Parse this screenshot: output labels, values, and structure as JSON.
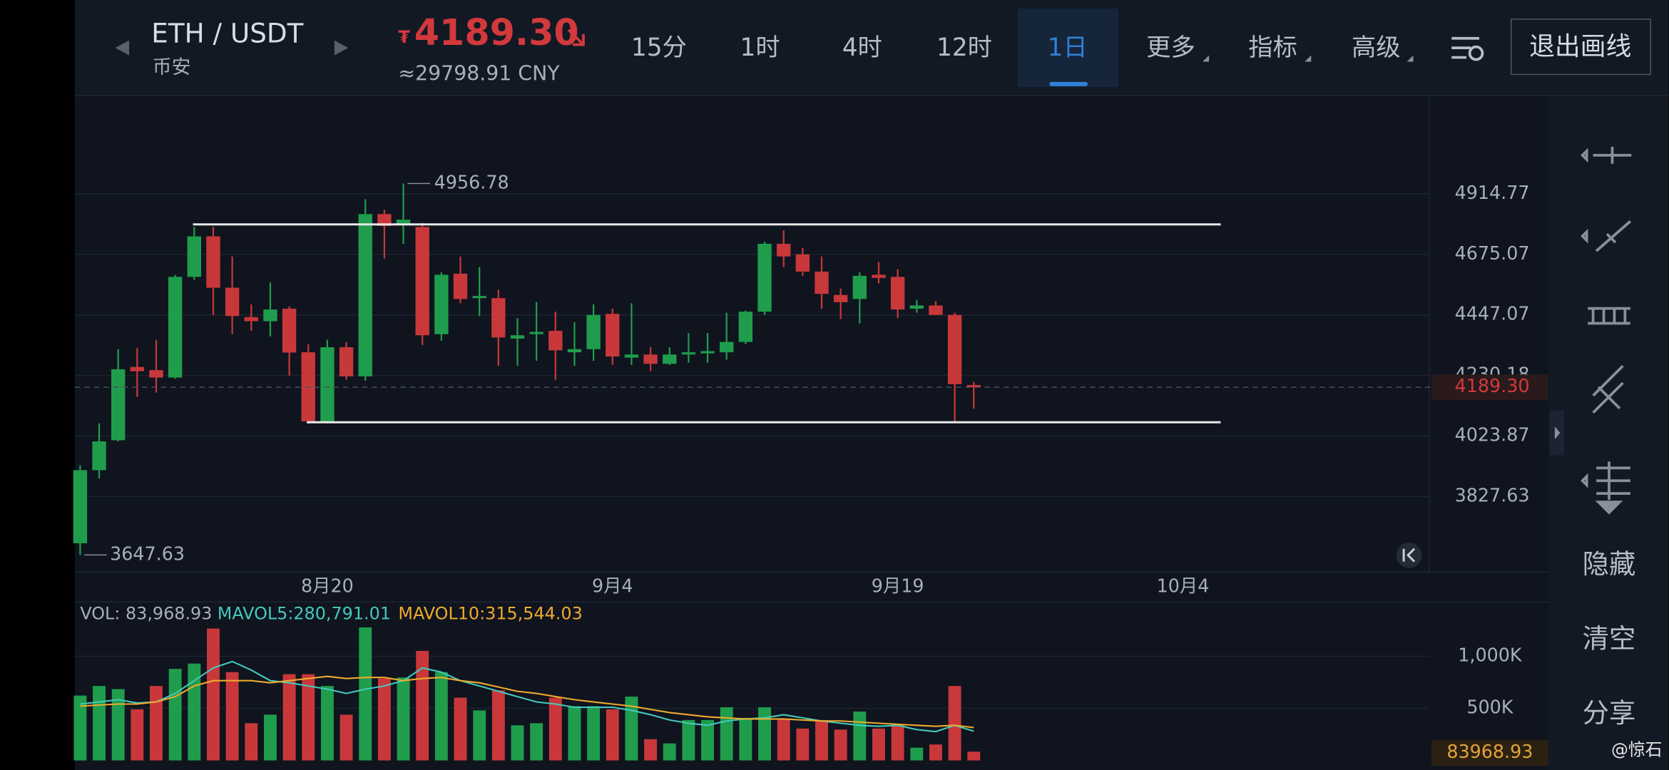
{
  "header": {
    "pair": "ETH / USDT",
    "exchange": "币安",
    "currency_symbol": "₮",
    "price": "4189.30",
    "price_cny": "≈29798.91 CNY",
    "tabs": [
      "15分",
      "1时",
      "4时",
      "12时",
      "1日",
      "更多",
      "指标",
      "高级"
    ],
    "exit_button": "退出画线"
  },
  "sidebar": {
    "buttons": [
      "隐藏",
      "清空",
      "分享"
    ]
  },
  "watermark": "@惊石",
  "chart_data": [
    {
      "type": "candlestick",
      "log": true,
      "grid": true,
      "up_color": "#1f9d4c",
      "down_color": "#c8383a",
      "categories": [
        null,
        null,
        null,
        null,
        null,
        null,
        null,
        null,
        null,
        null,
        null,
        null,
        null,
        "8月20",
        null,
        null,
        null,
        null,
        null,
        null,
        null,
        null,
        null,
        null,
        null,
        null,
        null,
        null,
        "9月4",
        null,
        null,
        null,
        null,
        null,
        null,
        null,
        null,
        null,
        null,
        null,
        null,
        null,
        null,
        "9月19",
        null,
        null,
        null,
        null,
        null,
        null,
        null,
        null,
        null,
        null,
        null,
        null,
        null,
        null,
        "10月4"
      ],
      "open": [
        3683,
        3912,
        4010,
        4260,
        4249,
        4223,
        4589,
        4745,
        4548,
        4439,
        4424,
        4470,
        4312,
        4073,
        4330,
        4227,
        4833,
        4790,
        4782,
        4377,
        4601,
        4509,
        4509,
        4361,
        4377,
        4389,
        4312,
        4323,
        4451,
        4293,
        4304,
        4271,
        4304,
        4308,
        4312,
        4349,
        4459,
        4716,
        4675,
        4609,
        4521,
        4506,
        4597,
        4589,
        4470,
        4482,
        4447,
        4197,
        null,
        null,
        null,
        null,
        null,
        null,
        null,
        null,
        null,
        null,
        null
      ],
      "high": [
        3928,
        4066,
        4323,
        4327,
        4356,
        4597,
        4782,
        4782,
        4667,
        4486,
        4568,
        4478,
        4341,
        4357,
        4349,
        4893,
        4850,
        4956.78,
        4798,
        4606,
        4667,
        4626,
        4541,
        4435,
        4494,
        4459,
        4420,
        4486,
        4470,
        4490,
        4330,
        4330,
        4381,
        4381,
        4455,
        4463,
        4724,
        4769,
        4700,
        4667,
        4545,
        4606,
        4646,
        4618,
        4502,
        4498,
        4455,
        4208,
        null,
        null,
        null,
        null,
        null,
        null,
        null,
        null,
        null,
        null,
        null
      ],
      "low": [
        3647.63,
        3885,
        4006,
        4156,
        4171,
        4219,
        4577,
        4447,
        4377,
        4389,
        4369,
        4230,
        4066,
        4066,
        4215,
        4212,
        4659,
        4716,
        4338,
        4353,
        4490,
        4443,
        4264,
        4264,
        4282,
        4215,
        4264,
        4282,
        4267,
        4267,
        4245,
        4267,
        4275,
        4275,
        4286,
        4341,
        4447,
        4626,
        4593,
        4470,
        4432,
        4416,
        4564,
        4435,
        4455,
        4447,
        4073,
        4116,
        null,
        null,
        null,
        null,
        null,
        null,
        null,
        null,
        null,
        null,
        null
      ],
      "close": [
        3912,
        4006,
        4252,
        4245,
        4223,
        4589,
        4745,
        4548,
        4443,
        4424,
        4467,
        4311,
        4073,
        4330,
        4227,
        4833,
        4786,
        4811,
        4373,
        4597,
        4506,
        4517,
        4365,
        4373,
        4385,
        4319,
        4323,
        4447,
        4297,
        4304,
        4271,
        4304,
        4312,
        4316,
        4349,
        4459,
        4716,
        4667,
        4609,
        4525,
        4494,
        4593,
        4585,
        4467,
        4482,
        4447,
        4200,
        4189.3,
        null,
        null,
        null,
        null,
        null,
        null,
        null,
        null,
        null,
        null,
        null
      ],
      "ylim": [
        3596,
        5320
      ],
      "yticks": [
        3827.63,
        4023.87,
        4230.18,
        4447.07,
        4675.07,
        4914.77
      ],
      "last_price": {
        "value": 4189.3,
        "label": "4189.30"
      }
    },
    {
      "type": "bar",
      "grid": true,
      "ylim": [
        0,
        1520000
      ],
      "yticks": [
        {
          "value": 500000,
          "label": "500K"
        },
        {
          "value": 1000000,
          "label": "1,000K"
        }
      ],
      "series": [
        {
          "name": "VOL: 83,968.93",
          "type": "bar",
          "values": [
            622000,
            714000,
            684000,
            490000,
            714000,
            878000,
            929000,
            1265000,
            847000,
            357000,
            439000,
            827000,
            827000,
            714000,
            439000,
            1276000,
            786000,
            796000,
            1051000,
            847000,
            602000,
            480000,
            673000,
            337000,
            357000,
            602000,
            520000,
            520000,
            490000,
            612000,
            204000,
            163000,
            388000,
            388000,
            510000,
            408000,
            510000,
            398000,
            306000,
            388000,
            296000,
            469000,
            306000,
            337000,
            122000,
            153000,
            714000,
            83968.93,
            null,
            null,
            null,
            null,
            null,
            null,
            null,
            null,
            null,
            null,
            null
          ]
        },
        {
          "name": "MAVOL5:280,791.01",
          "type": "line",
          "color": "#45c9bd",
          "values": [
            541000,
            561000,
            582000,
            551000,
            561000,
            643000,
            765000,
            888000,
            949000,
            867000,
            765000,
            745000,
            714000,
            684000,
            643000,
            684000,
            714000,
            765000,
            888000,
            847000,
            765000,
            714000,
            663000,
            612000,
            561000,
            541000,
            510000,
            510000,
            510000,
            480000,
            439000,
            388000,
            357000,
            337000,
            378000,
            398000,
            408000,
            439000,
            408000,
            378000,
            357000,
            337000,
            327000,
            337000,
            296000,
            276000,
            337000,
            280791.01,
            null,
            null,
            null,
            null,
            null,
            null,
            null,
            null,
            null,
            null,
            null
          ]
        },
        {
          "name": "MAVOL10:315,544.03",
          "type": "line",
          "color": "#eeaa2e",
          "values": [
            520000,
            531000,
            541000,
            541000,
            561000,
            612000,
            714000,
            765000,
            765000,
            765000,
            745000,
            765000,
            786000,
            806000,
            786000,
            796000,
            796000,
            765000,
            786000,
            796000,
            765000,
            745000,
            704000,
            663000,
            643000,
            612000,
            582000,
            561000,
            541000,
            520000,
            490000,
            459000,
            439000,
            418000,
            408000,
            398000,
            398000,
            398000,
            388000,
            378000,
            378000,
            367000,
            357000,
            347000,
            337000,
            327000,
            337000,
            315544.03,
            null,
            null,
            null,
            null,
            null,
            null,
            null,
            null,
            null,
            null,
            null
          ]
        }
      ]
    }
  ]
}
